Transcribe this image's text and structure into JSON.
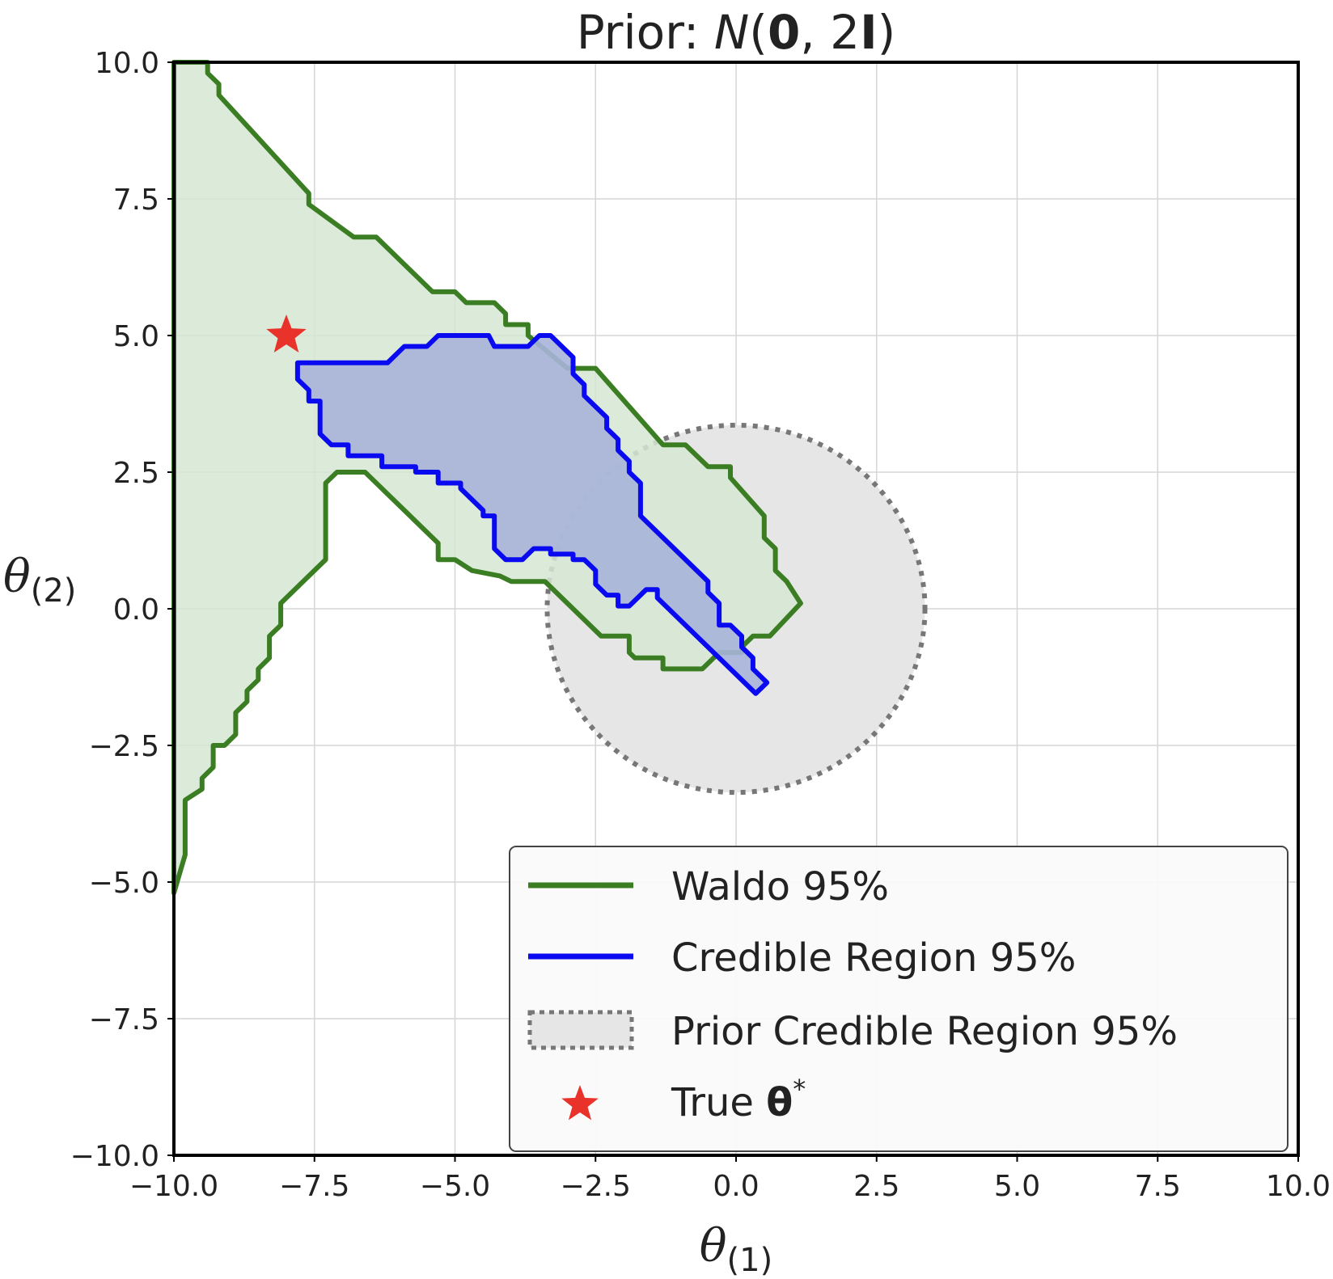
{
  "chart_data": {
    "type": "area",
    "title": "Prior: N(0, 2I)",
    "title_parts": {
      "prefix": "Prior: ",
      "dist": "N",
      "open": "(",
      "mean": "0",
      "sep": ", ",
      "cov_scale": "2",
      "cov_mat": "I",
      "close": ")"
    },
    "xlabel": {
      "symbol": "θ",
      "sub": "(1)"
    },
    "ylabel": {
      "symbol": "θ",
      "sub": "(2)"
    },
    "xlim": [
      -10,
      10
    ],
    "ylim": [
      -10,
      10
    ],
    "grid": true,
    "x_ticks": [
      -10,
      -7.5,
      -5,
      -2.5,
      0,
      2.5,
      5,
      7.5,
      10
    ],
    "y_ticks": [
      -10,
      -7.5,
      -5,
      -2.5,
      0,
      2.5,
      5,
      7.5,
      10
    ],
    "x_tick_labels": [
      "−10.0",
      "−7.5",
      "−5.0",
      "−2.5",
      "0.0",
      "2.5",
      "5.0",
      "7.5",
      "10.0"
    ],
    "y_tick_labels": [
      "−10.0",
      "−7.5",
      "−5.0",
      "−2.5",
      "0.0",
      "2.5",
      "5.0",
      "7.5",
      "10.0"
    ],
    "legend_position": "lower-right",
    "series": [
      {
        "name": "Waldo 95%",
        "kind": "region",
        "stroke": "#3a7d22",
        "fill": "#d5e6d2",
        "points": [
          [
            -10,
            10
          ],
          [
            -9.4,
            10
          ],
          [
            -9.4,
            9.8
          ],
          [
            -9.2,
            9.6
          ],
          [
            -9.2,
            9.4
          ],
          [
            -7.6,
            7.6
          ],
          [
            -7.6,
            7.4
          ],
          [
            -6.8,
            6.8
          ],
          [
            -6.4,
            6.8
          ],
          [
            -5.4,
            5.8
          ],
          [
            -5,
            5.8
          ],
          [
            -4.8,
            5.6
          ],
          [
            -4.3,
            5.6
          ],
          [
            -4.1,
            5.4
          ],
          [
            -4.1,
            5.2
          ],
          [
            -3.7,
            5.2
          ],
          [
            -3.7,
            5
          ],
          [
            -3,
            4.4
          ],
          [
            -2.5,
            4.4
          ],
          [
            -1.3,
            3.0
          ],
          [
            -0.9,
            3.0
          ],
          [
            -0.5,
            2.6
          ],
          [
            -0.1,
            2.6
          ],
          [
            -0.1,
            2.4
          ],
          [
            0.5,
            1.7
          ],
          [
            0.5,
            1.3
          ],
          [
            0.7,
            1.1
          ],
          [
            0.7,
            0.7
          ],
          [
            0.9,
            0.5
          ],
          [
            1.15,
            0.1
          ],
          [
            0.6,
            -0.5
          ],
          [
            0.3,
            -0.5
          ],
          [
            0.1,
            -0.7
          ],
          [
            0.1,
            -0.8
          ],
          [
            -0.3,
            -0.8
          ],
          [
            -0.6,
            -1.1
          ],
          [
            -1.3,
            -1.1
          ],
          [
            -1.3,
            -0.9
          ],
          [
            -1.8,
            -0.9
          ],
          [
            -1.9,
            -0.8
          ],
          [
            -1.9,
            -0.5
          ],
          [
            -2.4,
            -0.5
          ],
          [
            -3.4,
            0.5
          ],
          [
            -4.0,
            0.5
          ],
          [
            -4.2,
            0.6
          ],
          [
            -4.7,
            0.7
          ],
          [
            -5.0,
            0.9
          ],
          [
            -5.3,
            0.9
          ],
          [
            -5.3,
            1.2
          ],
          [
            -6.6,
            2.5
          ],
          [
            -7.1,
            2.5
          ],
          [
            -7.3,
            2.3
          ],
          [
            -7.3,
            0.9
          ],
          [
            -8.1,
            0.1
          ],
          [
            -8.1,
            -0.3
          ],
          [
            -8.3,
            -0.5
          ],
          [
            -8.3,
            -0.9
          ],
          [
            -8.5,
            -1.1
          ],
          [
            -8.5,
            -1.3
          ],
          [
            -8.7,
            -1.5
          ],
          [
            -8.7,
            -1.7
          ],
          [
            -8.9,
            -1.9
          ],
          [
            -8.9,
            -2.3
          ],
          [
            -9.1,
            -2.5
          ],
          [
            -9.3,
            -2.5
          ],
          [
            -9.3,
            -2.9
          ],
          [
            -9.5,
            -3.1
          ],
          [
            -9.5,
            -3.3
          ],
          [
            -9.8,
            -3.5
          ],
          [
            -9.8,
            -4.5
          ],
          [
            -10,
            -5.2
          ]
        ]
      },
      {
        "name": "Credible Region 95%",
        "kind": "region",
        "stroke": "#0a0af0",
        "fill": "#a9b4d9",
        "points": [
          [
            -7.8,
            4.5
          ],
          [
            -6.2,
            4.5
          ],
          [
            -5.9,
            4.8
          ],
          [
            -5.5,
            4.8
          ],
          [
            -5.3,
            5.0
          ],
          [
            -4.4,
            5.0
          ],
          [
            -4.3,
            4.8
          ],
          [
            -3.7,
            4.8
          ],
          [
            -3.5,
            5.0
          ],
          [
            -3.3,
            5.0
          ],
          [
            -2.9,
            4.6
          ],
          [
            -2.9,
            4.3
          ],
          [
            -2.7,
            4.1
          ],
          [
            -2.7,
            3.9
          ],
          [
            -2.3,
            3.5
          ],
          [
            -2.3,
            3.3
          ],
          [
            -2.1,
            3.1
          ],
          [
            -2.1,
            2.9
          ],
          [
            -1.9,
            2.7
          ],
          [
            -1.9,
            2.5
          ],
          [
            -1.7,
            2.3
          ],
          [
            -1.7,
            1.7
          ],
          [
            -0.5,
            0.5
          ],
          [
            -0.5,
            0.3
          ],
          [
            -0.3,
            0.1
          ],
          [
            -0.3,
            -0.3
          ],
          [
            -0.1,
            -0.3
          ],
          [
            0.1,
            -0.5
          ],
          [
            0.1,
            -0.7
          ],
          [
            0.3,
            -0.9
          ],
          [
            0.3,
            -1.1
          ],
          [
            0.55,
            -1.35
          ],
          [
            0.35,
            -1.55
          ],
          [
            -1.4,
            0.2
          ],
          [
            -1.4,
            0.35
          ],
          [
            -1.6,
            0.35
          ],
          [
            -1.9,
            0.05
          ],
          [
            -2.1,
            0.05
          ],
          [
            -2.1,
            0.25
          ],
          [
            -2.3,
            0.25
          ],
          [
            -2.5,
            0.45
          ],
          [
            -2.5,
            0.7
          ],
          [
            -2.7,
            0.9
          ],
          [
            -2.9,
            0.9
          ],
          [
            -2.9,
            1.0
          ],
          [
            -3.3,
            1.0
          ],
          [
            -3.3,
            1.1
          ],
          [
            -3.6,
            1.1
          ],
          [
            -3.8,
            0.9
          ],
          [
            -4.1,
            0.9
          ],
          [
            -4.3,
            1.1
          ],
          [
            -4.3,
            1.7
          ],
          [
            -4.5,
            1.7
          ],
          [
            -4.5,
            1.8
          ],
          [
            -4.7,
            2.0
          ],
          [
            -4.9,
            2.2
          ],
          [
            -4.9,
            2.3
          ],
          [
            -5.3,
            2.3
          ],
          [
            -5.3,
            2.5
          ],
          [
            -5.7,
            2.5
          ],
          [
            -5.7,
            2.6
          ],
          [
            -6.3,
            2.6
          ],
          [
            -6.3,
            2.8
          ],
          [
            -6.9,
            2.8
          ],
          [
            -6.9,
            3.0
          ],
          [
            -7.2,
            3.0
          ],
          [
            -7.4,
            3.2
          ],
          [
            -7.4,
            3.8
          ],
          [
            -7.6,
            3.8
          ],
          [
            -7.6,
            4.0
          ],
          [
            -7.8,
            4.2
          ]
        ]
      },
      {
        "name": "Prior Credible Region 95%",
        "kind": "circle",
        "center": [
          0,
          0
        ],
        "radius": 3.36,
        "stroke": "#777777",
        "fill": "#e6e6e6"
      },
      {
        "name": "True θ*",
        "kind": "point",
        "x": -8.0,
        "y": 5.0,
        "color": "#e8322a"
      }
    ]
  },
  "legend": [
    {
      "label": "Waldo 95%"
    },
    {
      "label": "Credible Region 95%"
    },
    {
      "label": "Prior Credible Region 95%"
    },
    {
      "label_prefix": "True ",
      "label_symbol": "θ",
      "label_sup": "*"
    }
  ]
}
